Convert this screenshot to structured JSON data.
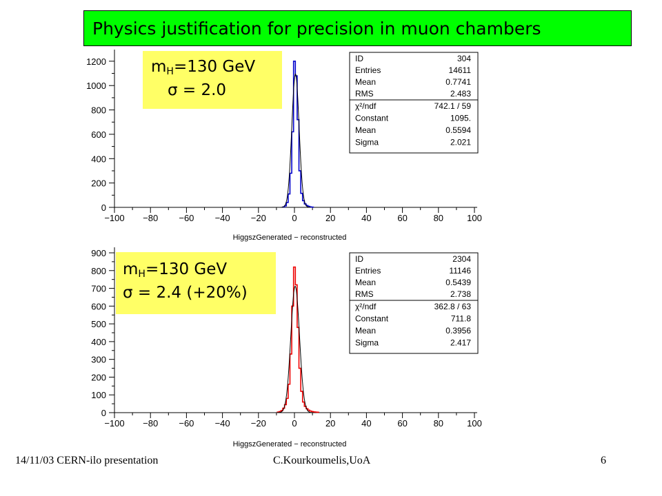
{
  "header": {
    "title": "Physics justification for precision in muon chambers"
  },
  "annotations": [
    {
      "line1_prefix": "m",
      "line1_sub": "H",
      "line1_suffix": "=130 GeV",
      "line2": "σ = 2.0"
    },
    {
      "line1_prefix": "m",
      "line1_sub": "H",
      "line1_suffix": "=130 GeV",
      "line2": "σ = 2.4 (+20%)"
    }
  ],
  "footer": {
    "left": "14/11/03 CERN-ilo presentation",
    "center": "C.Kourkoumelis,UoA",
    "page": "6"
  },
  "colors": {
    "title_bg": "#00ff00",
    "label_bg": "#ffff66",
    "top_hist": "#0000cc",
    "bottom_hist": "#ee0000",
    "fit": "#000000"
  },
  "chart_data": [
    {
      "type": "histogram",
      "xlabel": "HiggszGenerated − reconstructed",
      "xlim": [
        -100,
        100
      ],
      "ylim": [
        0,
        1250
      ],
      "xticks": [
        -100,
        -80,
        -60,
        -40,
        -20,
        0,
        20,
        40,
        60,
        80,
        100
      ],
      "yticks": [
        0,
        200,
        400,
        600,
        800,
        1000,
        1200
      ],
      "hist_color": "#0000cc",
      "fit": {
        "constant": 1095,
        "mean": 0.5594,
        "sigma": 2.021
      },
      "stats": [
        {
          "label": "ID",
          "value": "304"
        },
        {
          "label": "Entries",
          "value": "14611"
        },
        {
          "label": "Mean",
          "value": "0.7741"
        },
        {
          "label": "RMS",
          "value": "2.483"
        },
        {
          "label": "χ²/ndf",
          "value": "742.1   /   59"
        },
        {
          "label": "Constant",
          "value": "1095."
        },
        {
          "label": "Mean",
          "value": "0.5594"
        },
        {
          "label": "Sigma",
          "value": "2.021"
        }
      ],
      "bins": [
        [
          -6,
          3
        ],
        [
          -5,
          12
        ],
        [
          -4,
          40
        ],
        [
          -3,
          110
        ],
        [
          -2,
          280
        ],
        [
          -1,
          620
        ],
        [
          0,
          1200
        ],
        [
          1,
          1080
        ],
        [
          2,
          720
        ],
        [
          3,
          300
        ],
        [
          4,
          115
        ],
        [
          5,
          55
        ],
        [
          6,
          28
        ],
        [
          7,
          15
        ],
        [
          8,
          8
        ],
        [
          9,
          4
        ],
        [
          10,
          2
        ]
      ]
    },
    {
      "type": "histogram",
      "xlabel": "HiggszGenerated − reconstructed",
      "xlim": [
        -100,
        100
      ],
      "ylim": [
        0,
        900
      ],
      "xticks": [
        -100,
        -80,
        -60,
        -40,
        -20,
        0,
        20,
        40,
        60,
        80,
        100
      ],
      "yticks": [
        0,
        100,
        200,
        300,
        400,
        500,
        600,
        700,
        800,
        900
      ],
      "hist_color": "#ee0000",
      "fit": {
        "constant": 711.8,
        "mean": 0.3956,
        "sigma": 2.417
      },
      "stats": [
        {
          "label": "ID",
          "value": "2304"
        },
        {
          "label": "Entries",
          "value": "11146"
        },
        {
          "label": "Mean",
          "value": "0.5439"
        },
        {
          "label": "RMS",
          "value": "2.738"
        },
        {
          "label": "χ²/ndf",
          "value": "362.8   /   63"
        },
        {
          "label": "Constant",
          "value": "711.8"
        },
        {
          "label": "Mean",
          "value": "0.3956"
        },
        {
          "label": "Sigma",
          "value": "2.417"
        }
      ],
      "bins": [
        [
          -9,
          3
        ],
        [
          -8,
          6
        ],
        [
          -7,
          12
        ],
        [
          -6,
          25
        ],
        [
          -5,
          45
        ],
        [
          -4,
          80
        ],
        [
          -3,
          160
        ],
        [
          -2,
          330
        ],
        [
          -1,
          600
        ],
        [
          0,
          820
        ],
        [
          1,
          720
        ],
        [
          2,
          480
        ],
        [
          3,
          250
        ],
        [
          4,
          120
        ],
        [
          5,
          60
        ],
        [
          6,
          35
        ],
        [
          7,
          22
        ],
        [
          8,
          14
        ],
        [
          9,
          9
        ],
        [
          10,
          6
        ],
        [
          11,
          4
        ],
        [
          12,
          3
        ],
        [
          13,
          2
        ]
      ]
    }
  ]
}
